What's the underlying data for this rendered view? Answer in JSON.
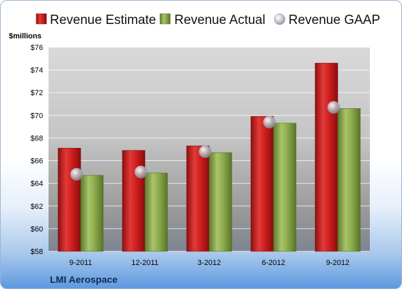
{
  "chart_data": {
    "type": "bar",
    "company": "LMI Aerospace",
    "unit_label": "$millions",
    "categories": [
      "9-2011",
      "12-2011",
      "3-2012",
      "6-2012",
      "9-2012"
    ],
    "series": [
      {
        "name": "Revenue Estimate",
        "kind": "bar",
        "color": "#cc1f1f",
        "values": [
          67.1,
          66.9,
          67.3,
          69.9,
          74.6
        ]
      },
      {
        "name": "Revenue Actual",
        "kind": "bar",
        "color": "#8aaa48",
        "values": [
          64.7,
          64.9,
          66.7,
          69.3,
          70.6
        ]
      },
      {
        "name": "Revenue GAAP",
        "kind": "marker",
        "color": "#b8bcc4",
        "values": [
          64.8,
          65.0,
          66.8,
          69.4,
          70.7
        ]
      }
    ],
    "ylim": [
      58,
      76
    ],
    "yticks": [
      "$58",
      "$60",
      "$62",
      "$64",
      "$66",
      "$68",
      "$70",
      "$72",
      "$74",
      "$76"
    ],
    "grid": true,
    "legend_position": "top"
  }
}
